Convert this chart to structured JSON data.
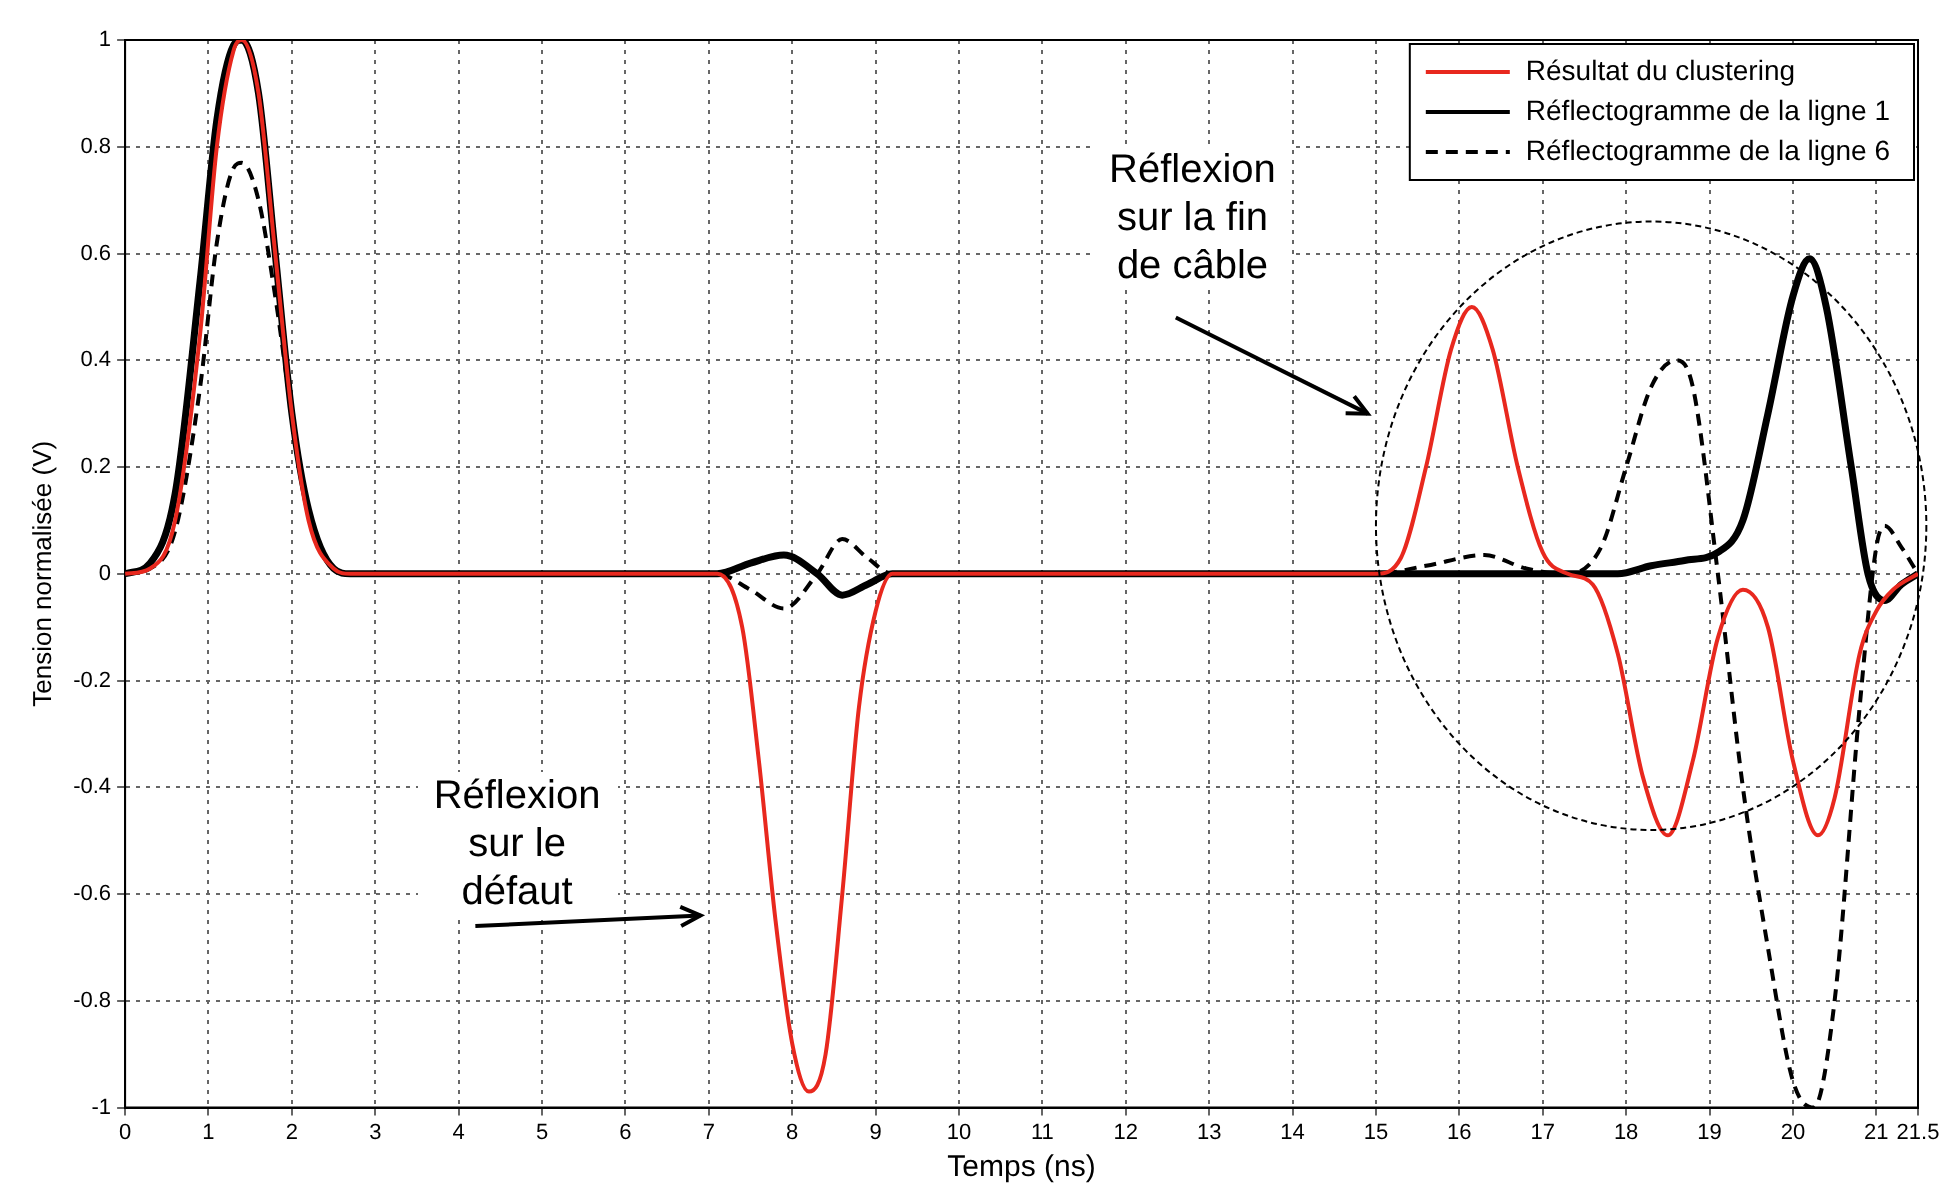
{
  "chart_data": {
    "type": "line",
    "xlabel": "Temps (ns)",
    "ylabel": "Tension normalisée (V)",
    "xlim": [
      0,
      21.5
    ],
    "xticks": [
      0,
      1,
      2,
      3,
      4,
      5,
      6,
      7,
      8,
      9,
      10,
      11,
      12,
      13,
      14,
      15,
      16,
      17,
      18,
      19,
      20,
      21,
      21.5
    ],
    "ylim": [
      -1,
      1
    ],
    "yticks": [
      -1,
      -0.8,
      -0.6,
      -0.4,
      -0.2,
      0,
      0.2,
      0.4,
      0.6,
      0.8,
      1
    ],
    "grid": true,
    "legend": "top right",
    "marker": "none",
    "series": [
      {
        "name": "Résultat du clustering",
        "color": "#e8281e",
        "line_style": "solid",
        "x": [
          0,
          0.3,
          0.6,
          0.9,
          1.1,
          1.3,
          1.4,
          1.6,
          1.8,
          2.0,
          2.2,
          2.5,
          2.7,
          7.1,
          7.4,
          7.6,
          7.8,
          8.0,
          8.2,
          8.4,
          8.6,
          8.8,
          9.0,
          9.2,
          15,
          15.3,
          15.6,
          15.9,
          16.15,
          16.4,
          16.7,
          17.0,
          17.3,
          17.6,
          17.9,
          18.2,
          18.5,
          18.8,
          19.1,
          19.4,
          19.7,
          20.0,
          20.3,
          20.5,
          20.8,
          21.0,
          21.2,
          21.5
        ],
        "values": [
          0,
          0.01,
          0.1,
          0.45,
          0.8,
          0.98,
          1.0,
          0.9,
          0.6,
          0.3,
          0.1,
          0.01,
          0,
          0,
          -0.1,
          -0.35,
          -0.65,
          -0.88,
          -0.97,
          -0.9,
          -0.6,
          -0.25,
          -0.07,
          0,
          0,
          0.03,
          0.2,
          0.42,
          0.5,
          0.42,
          0.2,
          0.04,
          0,
          -0.02,
          -0.15,
          -0.38,
          -0.49,
          -0.35,
          -0.12,
          -0.03,
          -0.1,
          -0.35,
          -0.49,
          -0.42,
          -0.15,
          -0.07,
          -0.03,
          0
        ]
      },
      {
        "name": "Réflectogramme de la ligne 1",
        "color": "#000000",
        "line_style": "solid",
        "x": [
          0,
          0.3,
          0.6,
          0.9,
          1.1,
          1.3,
          1.4,
          1.6,
          1.8,
          2.0,
          2.2,
          2.5,
          2.7,
          7.1,
          7.5,
          7.9,
          8.3,
          8.6,
          8.9,
          9.2,
          17.5,
          17.9,
          18.3,
          18.7,
          19.1,
          19.4,
          19.7,
          20.0,
          20.2,
          20.4,
          20.7,
          20.9,
          21.1,
          21.3,
          21.5
        ],
        "values": [
          0,
          0.02,
          0.15,
          0.55,
          0.85,
          0.99,
          1.0,
          0.9,
          0.6,
          0.3,
          0.12,
          0.01,
          0,
          0,
          0.02,
          0.035,
          0,
          -0.04,
          -0.02,
          0,
          0,
          0,
          0.015,
          0.025,
          0.04,
          0.1,
          0.3,
          0.52,
          0.59,
          0.5,
          0.2,
          0,
          -0.05,
          -0.02,
          0
        ]
      },
      {
        "name": "Réflectogramme de la ligne 6",
        "color": "#000000",
        "line_style": "dashed",
        "x": [
          0,
          0.3,
          0.6,
          0.9,
          1.1,
          1.3,
          1.4,
          1.6,
          1.8,
          2.0,
          2.2,
          2.5,
          2.7,
          7.1,
          7.5,
          7.9,
          8.3,
          8.6,
          8.9,
          9.2,
          15,
          15.6,
          16.3,
          16.8,
          17.3,
          17.7,
          18.0,
          18.3,
          18.6,
          18.8,
          19.1,
          19.4,
          19.7,
          20.0,
          20.25,
          20.5,
          20.8,
          21.0,
          21.1,
          21.3,
          21.5
        ],
        "values": [
          0,
          0.01,
          0.08,
          0.35,
          0.62,
          0.76,
          0.77,
          0.7,
          0.52,
          0.3,
          0.12,
          0.01,
          0,
          0,
          -0.03,
          -0.065,
          0,
          0.065,
          0.03,
          0,
          0,
          0.015,
          0.035,
          0.01,
          0,
          0.05,
          0.2,
          0.35,
          0.4,
          0.35,
          0,
          -0.4,
          -0.7,
          -0.95,
          -1.0,
          -0.8,
          -0.25,
          0.05,
          0.09,
          0.05,
          0
        ]
      }
    ],
    "annotations": [
      "Réflexion sur la fin de câble",
      "Réflexion sur le défaut"
    ]
  }
}
